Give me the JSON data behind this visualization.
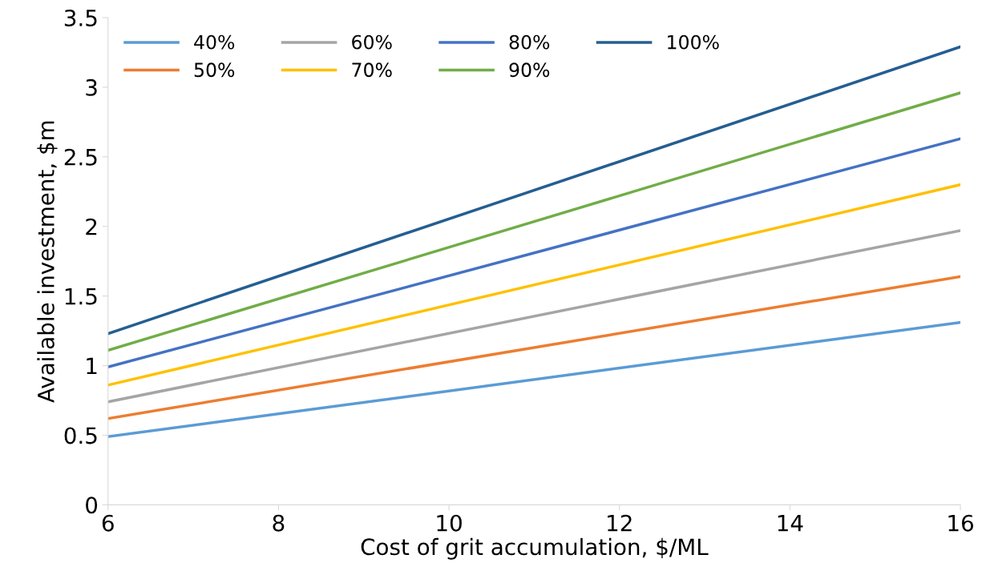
{
  "chart_data": {
    "type": "line",
    "xlabel": "Cost of grit accumulation, $/ML",
    "ylabel": "Available investment, $m",
    "x": [
      6,
      16
    ],
    "series": [
      {
        "name": "40%",
        "color": "#5b9bd5",
        "values": [
          0.49,
          1.31
        ]
      },
      {
        "name": "50%",
        "color": "#ed7d31",
        "values": [
          0.62,
          1.64
        ]
      },
      {
        "name": "60%",
        "color": "#a5a5a5",
        "values": [
          0.74,
          1.97
        ]
      },
      {
        "name": "70%",
        "color": "#ffc000",
        "values": [
          0.86,
          2.3
        ]
      },
      {
        "name": "80%",
        "color": "#4472c4",
        "values": [
          0.99,
          2.63
        ]
      },
      {
        "name": "90%",
        "color": "#70ad47",
        "values": [
          1.11,
          2.96
        ]
      },
      {
        "name": "100%",
        "color": "#255e91",
        "values": [
          1.23,
          3.29
        ]
      }
    ],
    "xlim": [
      6,
      16
    ],
    "xticks": [
      6,
      8,
      10,
      12,
      14,
      16
    ],
    "ylim": [
      0,
      3.5
    ],
    "yticks": [
      0,
      {
        "value": 0.5,
        "label": "0.5"
      },
      1,
      {
        "value": 1.5,
        "label": "1.5"
      },
      2,
      {
        "value": 2.5,
        "label": "2.5"
      },
      3,
      {
        "value": 3.5,
        "label": "3.5"
      }
    ],
    "grid": false,
    "legend": "top left",
    "marker": "none",
    "line_style": "solid"
  }
}
